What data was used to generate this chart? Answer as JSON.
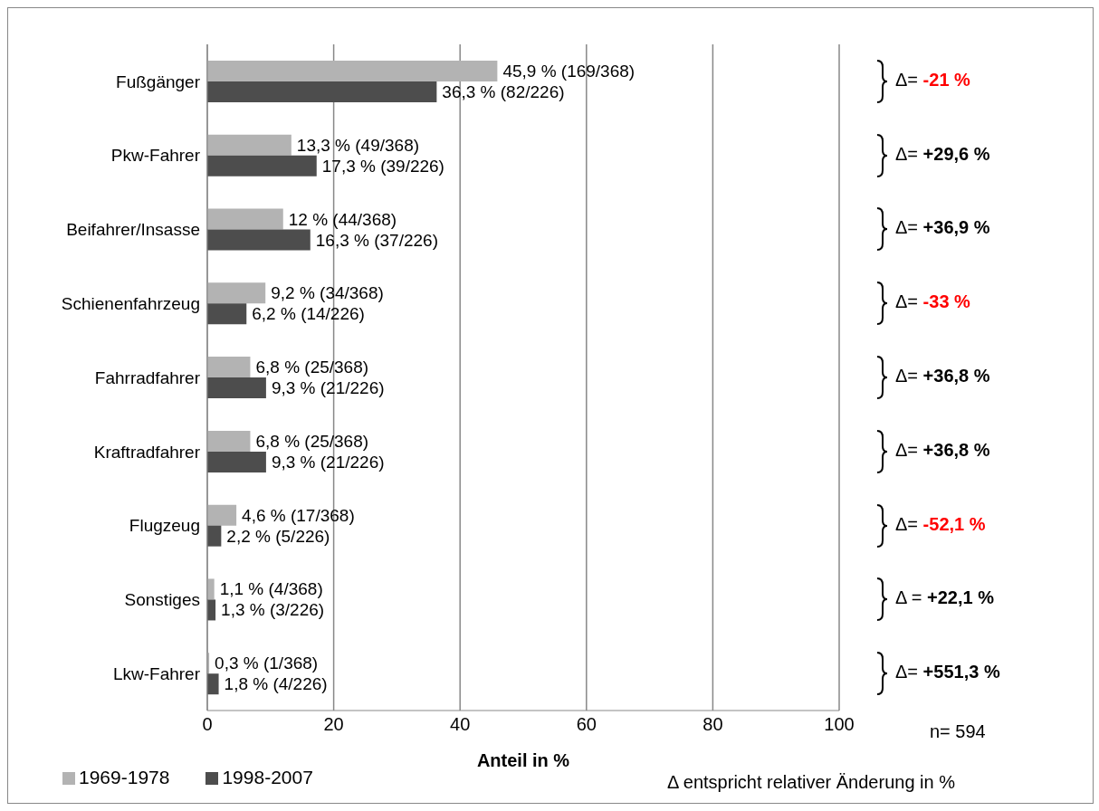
{
  "chart_data": {
    "type": "bar",
    "orientation": "horizontal",
    "categories": [
      "Fußgänger",
      "Pkw-Fahrer",
      "Beifahrer/Insasse",
      "Schienenfahrzeug",
      "Fahrradfahrer",
      "Kraftradfahrer",
      "Flugzeug",
      "Sonstiges",
      "Lkw-Fahrer"
    ],
    "series": [
      {
        "name": "1969-1978",
        "color": "#b3b3b3",
        "values": [
          45.9,
          13.3,
          12,
          9.2,
          6.8,
          6.8,
          4.6,
          1.1,
          0.3
        ],
        "value_labels": [
          "45,9 % (169/368)",
          "13,3 % (49/368)",
          "12 % (44/368)",
          "9,2 % (34/368)",
          "6,8 % (25/368)",
          "6,8 % (25/368)",
          "4,6 % (17/368)",
          "1,1 % (4/368)",
          "0,3 % (1/368)"
        ]
      },
      {
        "name": "1998-2007",
        "color": "#4d4d4d",
        "values": [
          36.3,
          17.3,
          16.3,
          6.2,
          9.3,
          9.3,
          2.2,
          1.3,
          1.8
        ],
        "value_labels": [
          "36,3 % (82/226)",
          "17,3 % (39/226)",
          "16,3 % (37/226)",
          "6,2 % (14/226)",
          "9,3 % (21/226)",
          "9,3 % (21/226)",
          "2,2 % (5/226)",
          "1,3 % (3/226)",
          "1,8 % (4/226)"
        ]
      }
    ],
    "xlim": [
      0,
      100
    ],
    "xticks": [
      0,
      20,
      40,
      60,
      80,
      100
    ],
    "grid": "x",
    "xlabel": "Anteil in %",
    "legend": "bottom left",
    "annotations": [
      "Δ= -21 %",
      "Δ= +29,6 %",
      "Δ= +36,9 %",
      "Δ= -33 %",
      "Δ= +36,8 %",
      "Δ= +36,8 %",
      "Δ= -52,1 %",
      "Δ = +22,1 %",
      "Δ= +551,3 %",
      "n= 594",
      "Δ entspricht relativer Änderung in %"
    ]
  }
}
